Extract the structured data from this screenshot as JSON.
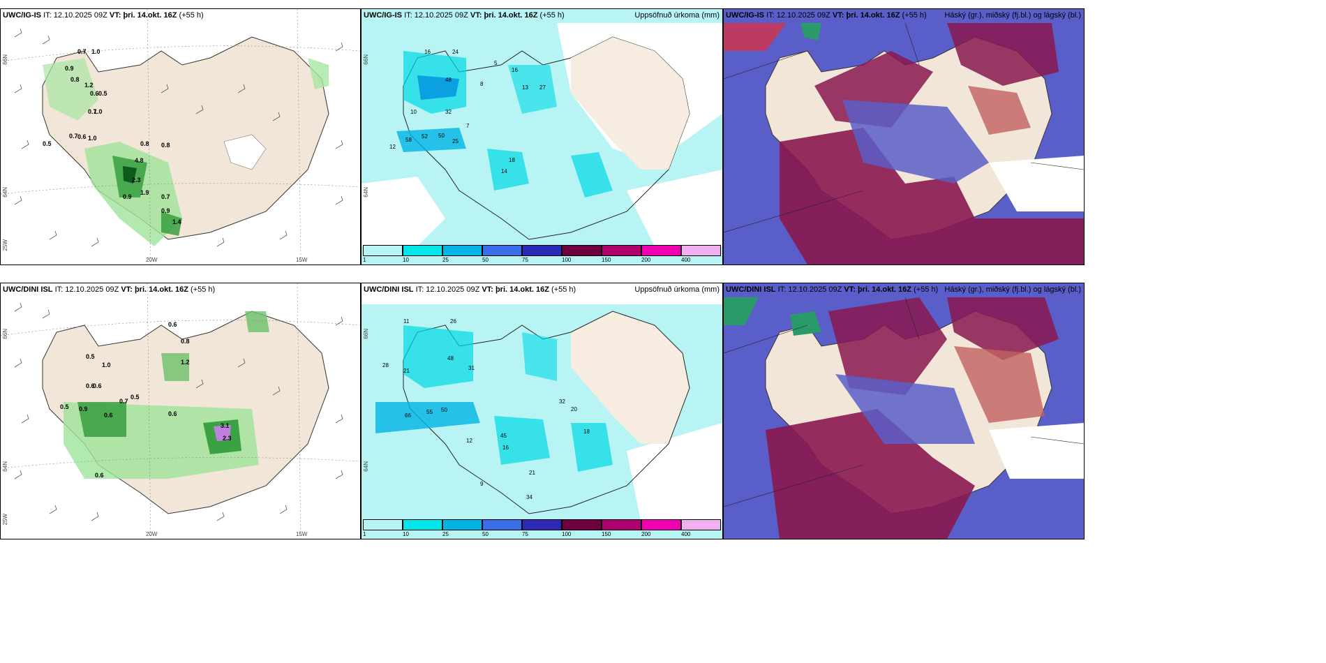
{
  "panels": [
    {
      "model": "UWC/IG-IS",
      "it_label": "IT:",
      "it": "12.10.2025 09Z",
      "vt_label": "VT:",
      "vt": "þri. 14.okt. 16Z",
      "lead": "(+55 h)",
      "right": ""
    },
    {
      "model": "UWC/IG-IS",
      "it_label": "IT:",
      "it": "12.10.2025 09Z",
      "vt_label": "VT:",
      "vt": "þri. 14.okt. 16Z",
      "lead": "(+55 h)",
      "right": "Uppsöfnuð úrkoma (mm)"
    },
    {
      "model": "UWC/IG-IS",
      "it_label": "IT:",
      "it": "12.10.2025 09Z",
      "vt_label": "VT:",
      "vt": "þri. 14.okt. 16Z",
      "lead": "(+55 h)",
      "right": "Háský (gr.), miðský (fj.bl.) og lágský (bl.)"
    },
    {
      "model": "UWC/DINI ISL",
      "it_label": "IT:",
      "it": "12.10.2025 09Z",
      "vt_label": "VT:",
      "vt": "þri. 14.okt. 16Z",
      "lead": "(+55 h)",
      "right": ""
    },
    {
      "model": "UWC/DINI ISL",
      "it_label": "IT:",
      "it": "12.10.2025 09Z",
      "vt_label": "VT:",
      "vt": "þri. 14.okt. 16Z",
      "lead": "(+55 h)",
      "right": "Uppsöfnuð úrkoma (mm)"
    },
    {
      "model": "UWC/DINI ISL",
      "it_label": "IT:",
      "it": "12.10.2025 09Z",
      "vt_label": "VT:",
      "vt": "þri. 14.okt. 16Z",
      "lead": "(+55 h)",
      "right": "Háský (gr.), miðský (fj.bl.) og lágský (bl.)"
    }
  ],
  "axes": {
    "lat_a": "66N",
    "lat_b": "64N",
    "lon_a": "20W",
    "lon_b": "15W",
    "lon_c": "25W"
  },
  "colorbar": {
    "ticks": [
      "1",
      "10",
      "25",
      "50",
      "75",
      "100",
      "150",
      "200",
      "400"
    ],
    "colors": [
      "#b8f4f4",
      "#00e6ea",
      "#00b4e6",
      "#3a6ee8",
      "#2a2ab4",
      "#6e0040",
      "#b0006e",
      "#f000b0",
      "#f0b0f0"
    ]
  },
  "labels": {
    "p1": [
      "0.7",
      "1.0",
      "0.9",
      "0.8",
      "1.2",
      "0.6",
      "0.5",
      "0.7",
      "1.0",
      "0.6",
      "1.0",
      "0.8",
      "4.8",
      "2.3",
      "1.9",
      "0.9",
      "0.7",
      "0.9",
      "1.4",
      "0.5",
      "0.7",
      "0.8"
    ],
    "p2": [
      "16",
      "24",
      "32",
      "48",
      "58",
      "52",
      "50",
      "25",
      "18",
      "14",
      "13",
      "27",
      "16",
      "8",
      "5",
      "7",
      "10",
      "12"
    ],
    "p4": [
      "0.6",
      "0.5",
      "1.0",
      "0.6",
      "0.7",
      "0.6",
      "1.2",
      "0.8",
      "0.9",
      "0.5",
      "0.6",
      "0.6",
      "0.5",
      "3.1",
      "2.3",
      "0.6"
    ],
    "p5": [
      "11",
      "26",
      "48",
      "31",
      "21",
      "28",
      "66",
      "55",
      "50",
      "45",
      "32",
      "20",
      "18",
      "21",
      "34",
      "16",
      "12",
      "9"
    ]
  }
}
